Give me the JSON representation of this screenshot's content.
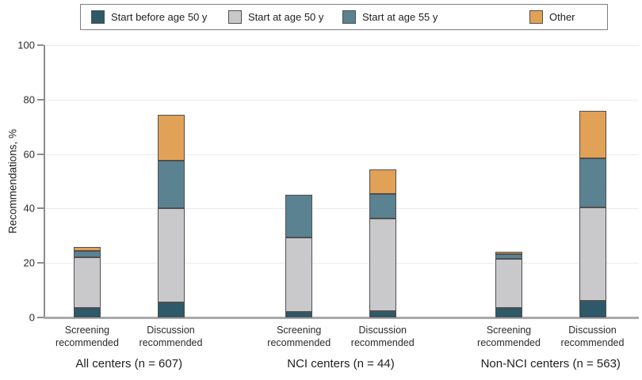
{
  "chart_data": {
    "type": "bar",
    "subtype": "stacked",
    "title": "",
    "ylabel": "Recommendations, %",
    "ylim": [
      0,
      100
    ],
    "yticks": [
      0,
      20,
      40,
      60,
      80,
      100
    ],
    "grid": "horizontal-major",
    "legend_position": "top",
    "legend": [
      {
        "name": "start-before-50",
        "label": "Start before age 50 y",
        "color": "#2d5968"
      },
      {
        "name": "start-at-50",
        "label": "Start at age 50 y",
        "color": "#c9c9cb"
      },
      {
        "name": "start-at-55",
        "label": "Start at age 55 y",
        "color": "#5b8290"
      },
      {
        "name": "other",
        "label": "Other",
        "color": "#e1a157"
      }
    ],
    "groups": [
      {
        "label": "All centers (n = 607)",
        "bars": [
          {
            "label": "Screening recommended",
            "values": [
              3.5,
              18.5,
              2.5,
              1.3
            ],
            "total": 25.8
          },
          {
            "label": "Discussion recommended",
            "values": [
              5.5,
              34.5,
              17.6,
              16.7
            ],
            "total": 74.3
          }
        ]
      },
      {
        "label": "NCI centers (n = 44)",
        "bars": [
          {
            "label": "Screening recommended",
            "values": [
              2.0,
              27.5,
              15.7,
              0
            ],
            "total": 45.2
          },
          {
            "label": "Discussion recommended",
            "values": [
              2.3,
              34.0,
              9.0,
              9.2
            ],
            "total": 54.5
          }
        ]
      },
      {
        "label": "Non-NCI centers (n = 563)",
        "bars": [
          {
            "label": "Screening recommended",
            "values": [
              3.5,
              18.0,
              1.7,
              1.0
            ],
            "total": 24.2
          },
          {
            "label": "Discussion recommended",
            "values": [
              6.0,
              34.5,
              18.0,
              17.5
            ],
            "total": 76.0
          }
        ]
      }
    ],
    "colors": {
      "axis": "#8c8c8c",
      "baseline": "#a9a9a9",
      "gridline": "#ebebeb",
      "segment_border": "#4f4f51",
      "text": "#1f1f1f"
    }
  }
}
